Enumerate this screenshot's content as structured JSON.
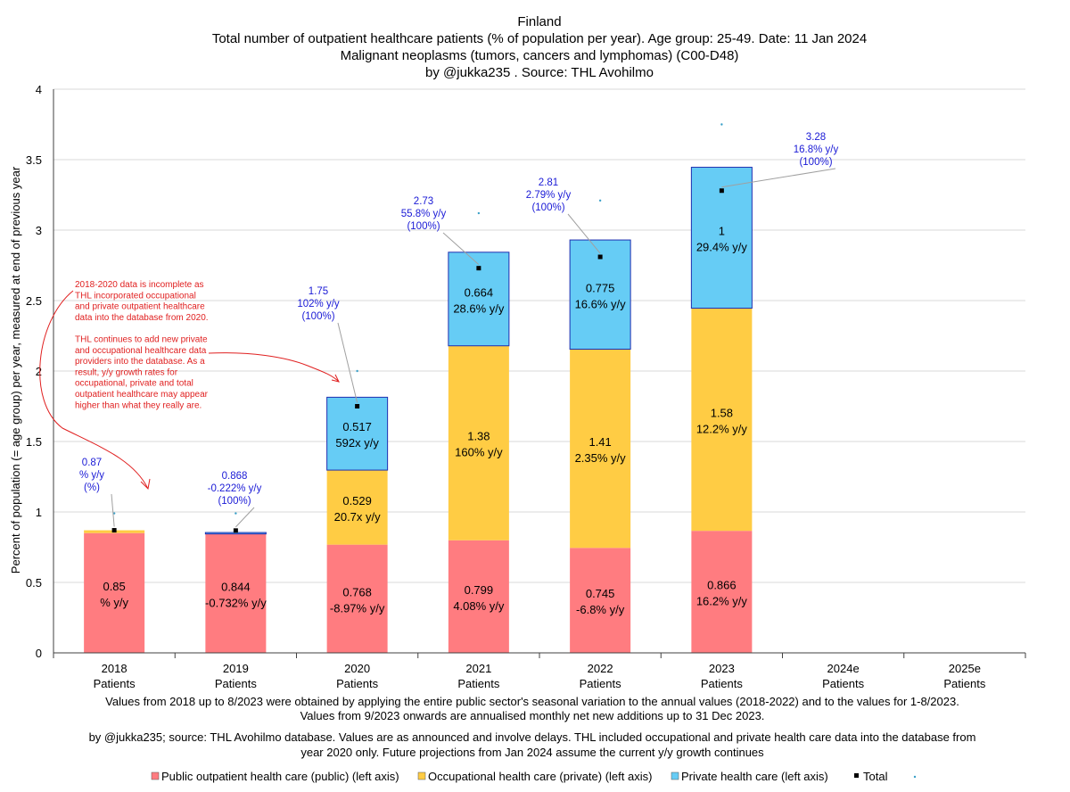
{
  "chart_data": {
    "type": "bar",
    "stacked": true,
    "title": [
      "Finland",
      "Total number of outpatient healthcare patients (% of population per year). Age group: 25-49. Date: 11 Jan 2024",
      "Malignant neoplasms (tumors, cancers and lymphomas) (C00-D48)",
      "by @jukka235 . Source: THL Avohilmo"
    ],
    "ylabel": "Percent of population (= age group) per year, measured at end of previous year",
    "ylim": [
      0,
      4
    ],
    "yticks": [
      "0",
      "0.5",
      "1",
      "1.5",
      "2",
      "2.5",
      "3",
      "3.5",
      "4"
    ],
    "categories": [
      "2018",
      "2019",
      "2020",
      "2021",
      "2022",
      "2023",
      "2024e",
      "2025e"
    ],
    "category_sub": "Patients",
    "series": [
      {
        "name": "Public outpatient health care (public) (left axis)",
        "color": "#ff7c80",
        "values": [
          0.85,
          0.844,
          0.768,
          0.799,
          0.745,
          0.866,
          null,
          null
        ],
        "labels": [
          "0.85",
          "0.844",
          "0.768",
          "0.799",
          "0.745",
          "0.866",
          "",
          ""
        ],
        "growth": [
          "% y/y",
          "-0.732% y/y",
          "-8.97% y/y",
          "4.08% y/y",
          "-6.8% y/y",
          "16.2% y/y",
          "",
          ""
        ]
      },
      {
        "name": "Occupational health care (private) (left axis)",
        "color": "#ffcc44",
        "values": [
          0.02,
          0.0,
          0.529,
          1.38,
          1.41,
          1.58,
          null,
          null
        ],
        "labels": [
          "",
          "",
          "0.529",
          "1.38",
          "1.41",
          "1.58",
          "",
          ""
        ],
        "growth": [
          "",
          "",
          "20.7x y/y",
          "160% y/y",
          "2.35% y/y",
          "12.2% y/y",
          "",
          ""
        ]
      },
      {
        "name": "Private health care (left axis)",
        "color": "#66ccf5",
        "values": [
          0.0,
          0.01,
          0.517,
          0.664,
          0.775,
          1.0,
          null,
          null
        ],
        "labels": [
          "",
          "",
          "0.517",
          "0.664",
          "0.775",
          "1",
          "",
          ""
        ],
        "growth": [
          "",
          "",
          "592x y/y",
          "28.6% y/y",
          "16.6% y/y",
          "29.4% y/y",
          "",
          ""
        ]
      }
    ],
    "total": {
      "name": "Total",
      "values": [
        0.87,
        0.868,
        1.75,
        2.73,
        2.81,
        3.28,
        null,
        null
      ],
      "callouts": [
        [
          "0.87",
          "% y/y",
          "(%)"
        ],
        [
          "0.868",
          "-0.222% y/y",
          "(100%)"
        ],
        [
          "1.75",
          "102% y/y",
          "(100%)"
        ],
        [
          "2.73",
          "55.8% y/y",
          "(100%)"
        ],
        [
          "2.81",
          "2.79% y/y",
          "(100%)"
        ],
        [
          "3.28",
          "16.8% y/y",
          "(100%)"
        ],
        null,
        null
      ]
    },
    "secondary_points": [
      0.99,
      0.99,
      2.0,
      3.12,
      3.21,
      3.75,
      null,
      null
    ],
    "annotation": [
      "2018-2020 data is incomplete as",
      "THL incorporated occupational",
      "and private outpatient healthcare",
      "data into the database from 2020.",
      "",
      "THL continues to add new private",
      "and occupational healthcare data",
      "providers into the database. As a",
      "result, y/y growth rates for",
      "occupational, private and total",
      "outpatient healthcare may appear",
      "higher than what they really are."
    ],
    "footer": [
      "Values from 2018 up to 8/2023 were obtained by applying the entire public sector's seasonal variation to the annual values (2018-2022) and to the values for 1-8/2023.",
      "Values from 9/2023 onwards are annualised monthly net new additions up to 31 Dec 2023.",
      "by @jukka235; source: THL Avohilmo database. Values are as announced and involve delays. THL included occupational and private health care data into the database from",
      "year 2020 only. Future projections from Jan 2024 assume the current y/y growth continues"
    ],
    "legend": [
      "Public outpatient health care (public) (left axis)",
      "Occupational health care (private) (left axis)",
      "Private health care (left axis)",
      "Total"
    ]
  }
}
